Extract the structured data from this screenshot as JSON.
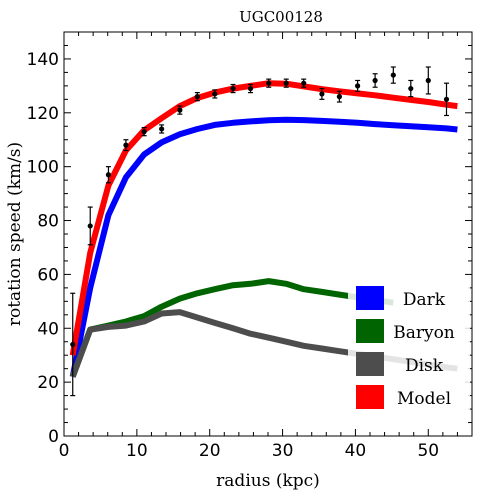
{
  "chart_data": {
    "type": "line",
    "title": "UGC00128",
    "xlabel": "radius (kpc)",
    "ylabel": "rotation speed (km/s)",
    "xlim": [
      0,
      56
    ],
    "ylim": [
      0,
      150
    ],
    "x_ticks": [
      0,
      10,
      20,
      30,
      40,
      50
    ],
    "y_ticks": [
      0,
      20,
      40,
      60,
      80,
      100,
      120,
      140
    ],
    "grid": false,
    "legend_position": "bottom-right",
    "series": [
      {
        "name": "Dark",
        "color": "#0000ff",
        "points": [
          [
            1.2,
            22
          ],
          [
            3.6,
            55
          ],
          [
            6.1,
            82
          ],
          [
            8.5,
            96
          ],
          [
            11,
            104.5
          ],
          [
            13.4,
            109
          ],
          [
            15.9,
            112
          ],
          [
            18.3,
            114
          ],
          [
            20.7,
            115.5
          ],
          [
            23.2,
            116.3
          ],
          [
            25.6,
            116.8
          ],
          [
            28.1,
            117.2
          ],
          [
            30.5,
            117.4
          ],
          [
            32.9,
            117.3
          ],
          [
            35.4,
            117
          ],
          [
            37.8,
            116.7
          ],
          [
            40.3,
            116.3
          ],
          [
            42.7,
            115.8
          ],
          [
            45.2,
            115.4
          ],
          [
            47.6,
            115
          ],
          [
            50,
            114.6
          ],
          [
            52.5,
            114.2
          ],
          [
            54,
            113.8
          ]
        ]
      },
      {
        "name": "Baryon",
        "color": "#006400",
        "points": [
          [
            1.2,
            22
          ],
          [
            3.6,
            39.5
          ],
          [
            6.1,
            41
          ],
          [
            8.5,
            42.5
          ],
          [
            11,
            44.5
          ],
          [
            13.4,
            48
          ],
          [
            15.9,
            51
          ],
          [
            18.3,
            53
          ],
          [
            20.7,
            54.5
          ],
          [
            23.2,
            56
          ],
          [
            25.6,
            56.5
          ],
          [
            28.1,
            57.5
          ],
          [
            30.5,
            56.5
          ],
          [
            32.9,
            54.5
          ],
          [
            35.4,
            53.5
          ],
          [
            37.8,
            52.5
          ],
          [
            40.3,
            51.5
          ],
          [
            42.7,
            50.5
          ],
          [
            45.2,
            49.5
          ]
        ]
      },
      {
        "name": "Disk",
        "color": "#4d4d4d",
        "points": [
          [
            1.2,
            22
          ],
          [
            3.6,
            39.5
          ],
          [
            6.1,
            40.5
          ],
          [
            8.5,
            41
          ],
          [
            11,
            42.5
          ],
          [
            13.4,
            45.5
          ],
          [
            15.9,
            46
          ],
          [
            18.3,
            44
          ],
          [
            20.7,
            42
          ],
          [
            23.2,
            40
          ],
          [
            25.6,
            38
          ],
          [
            28.1,
            36.5
          ],
          [
            30.5,
            35
          ],
          [
            32.9,
            33.5
          ],
          [
            35.4,
            32.5
          ],
          [
            37.8,
            31.5
          ],
          [
            40.3,
            30.5
          ],
          [
            42.7,
            29.5
          ],
          [
            45.2,
            28.5
          ],
          [
            47.6,
            27.5
          ],
          [
            50,
            26.5
          ],
          [
            52.5,
            25.5
          ],
          [
            54,
            25
          ]
        ]
      },
      {
        "name": "Model",
        "color": "#ff0000",
        "points": [
          [
            1.2,
            30
          ],
          [
            3.6,
            68
          ],
          [
            6.1,
            93
          ],
          [
            8.5,
            106
          ],
          [
            11,
            113.5
          ],
          [
            13.4,
            118
          ],
          [
            15.9,
            122.5
          ],
          [
            18.3,
            125.5
          ],
          [
            20.7,
            127.5
          ],
          [
            23.2,
            129
          ],
          [
            25.6,
            130
          ],
          [
            28.1,
            131
          ],
          [
            30.5,
            130.8
          ],
          [
            32.9,
            129.8
          ],
          [
            35.4,
            128.8
          ],
          [
            37.8,
            128
          ],
          [
            40.3,
            127.2
          ],
          [
            42.7,
            126.5
          ],
          [
            45.2,
            125.6
          ],
          [
            47.6,
            124.8
          ],
          [
            50,
            124
          ],
          [
            52.5,
            123
          ],
          [
            54,
            122.5
          ]
        ]
      }
    ],
    "observed": {
      "name": "data",
      "color": "#000000",
      "points": [
        {
          "x": 1.2,
          "y": 34,
          "err": 19
        },
        {
          "x": 3.6,
          "y": 78,
          "err": 7
        },
        {
          "x": 6.1,
          "y": 97,
          "err": 3
        },
        {
          "x": 8.5,
          "y": 108,
          "err": 2
        },
        {
          "x": 11,
          "y": 113,
          "err": 1.5
        },
        {
          "x": 13.4,
          "y": 114,
          "err": 1.5
        },
        {
          "x": 15.9,
          "y": 121,
          "err": 1.5
        },
        {
          "x": 18.3,
          "y": 126,
          "err": 1.5
        },
        {
          "x": 20.7,
          "y": 127,
          "err": 1.5
        },
        {
          "x": 23.2,
          "y": 129,
          "err": 1.5
        },
        {
          "x": 25.6,
          "y": 129,
          "err": 1.5
        },
        {
          "x": 28.1,
          "y": 131,
          "err": 1.5
        },
        {
          "x": 30.5,
          "y": 131,
          "err": 1.5
        },
        {
          "x": 32.9,
          "y": 131,
          "err": 1.5
        },
        {
          "x": 35.4,
          "y": 127,
          "err": 2
        },
        {
          "x": 37.8,
          "y": 126,
          "err": 2
        },
        {
          "x": 40.3,
          "y": 130,
          "err": 2
        },
        {
          "x": 42.7,
          "y": 132,
          "err": 2.5
        },
        {
          "x": 45.2,
          "y": 134,
          "err": 3
        },
        {
          "x": 47.6,
          "y": 129,
          "err": 3
        },
        {
          "x": 50,
          "y": 132,
          "err": 5
        },
        {
          "x": 52.5,
          "y": 125,
          "err": 6
        }
      ]
    },
    "legend": [
      "Dark",
      "Baryon",
      "Disk",
      "Model"
    ]
  }
}
